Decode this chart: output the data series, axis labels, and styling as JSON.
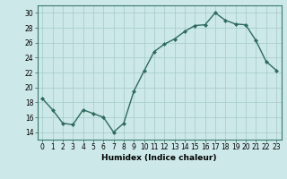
{
  "x": [
    0,
    1,
    2,
    3,
    4,
    5,
    6,
    7,
    8,
    9,
    10,
    11,
    12,
    13,
    14,
    15,
    16,
    17,
    18,
    19,
    20,
    21,
    22,
    23
  ],
  "y": [
    18.5,
    17.0,
    15.2,
    15.0,
    17.0,
    16.5,
    16.0,
    14.0,
    15.2,
    19.5,
    22.2,
    24.8,
    25.8,
    26.5,
    27.5,
    28.3,
    28.4,
    30.0,
    29.0,
    28.5,
    28.4,
    26.3,
    23.5,
    22.3
  ],
  "line_color": "#2e6b5e",
  "marker": "D",
  "marker_size": 2,
  "bg_color": "#cde8e8",
  "grid_color": "#aacece",
  "xlabel": "Humidex (Indice chaleur)",
  "xlim": [
    -0.5,
    23.5
  ],
  "ylim": [
    13,
    31
  ],
  "yticks": [
    14,
    16,
    18,
    20,
    22,
    24,
    26,
    28,
    30
  ],
  "xticks": [
    0,
    1,
    2,
    3,
    4,
    5,
    6,
    7,
    8,
    9,
    10,
    11,
    12,
    13,
    14,
    15,
    16,
    17,
    18,
    19,
    20,
    21,
    22,
    23
  ],
  "xtick_labels": [
    "0",
    "1",
    "2",
    "3",
    "4",
    "5",
    "6",
    "7",
    "8",
    "9",
    "10",
    "11",
    "12",
    "13",
    "14",
    "15",
    "16",
    "17",
    "18",
    "19",
    "20",
    "21",
    "22",
    "23"
  ],
  "xlabel_fontsize": 6.5,
  "tick_fontsize": 5.5,
  "linewidth": 1.0
}
